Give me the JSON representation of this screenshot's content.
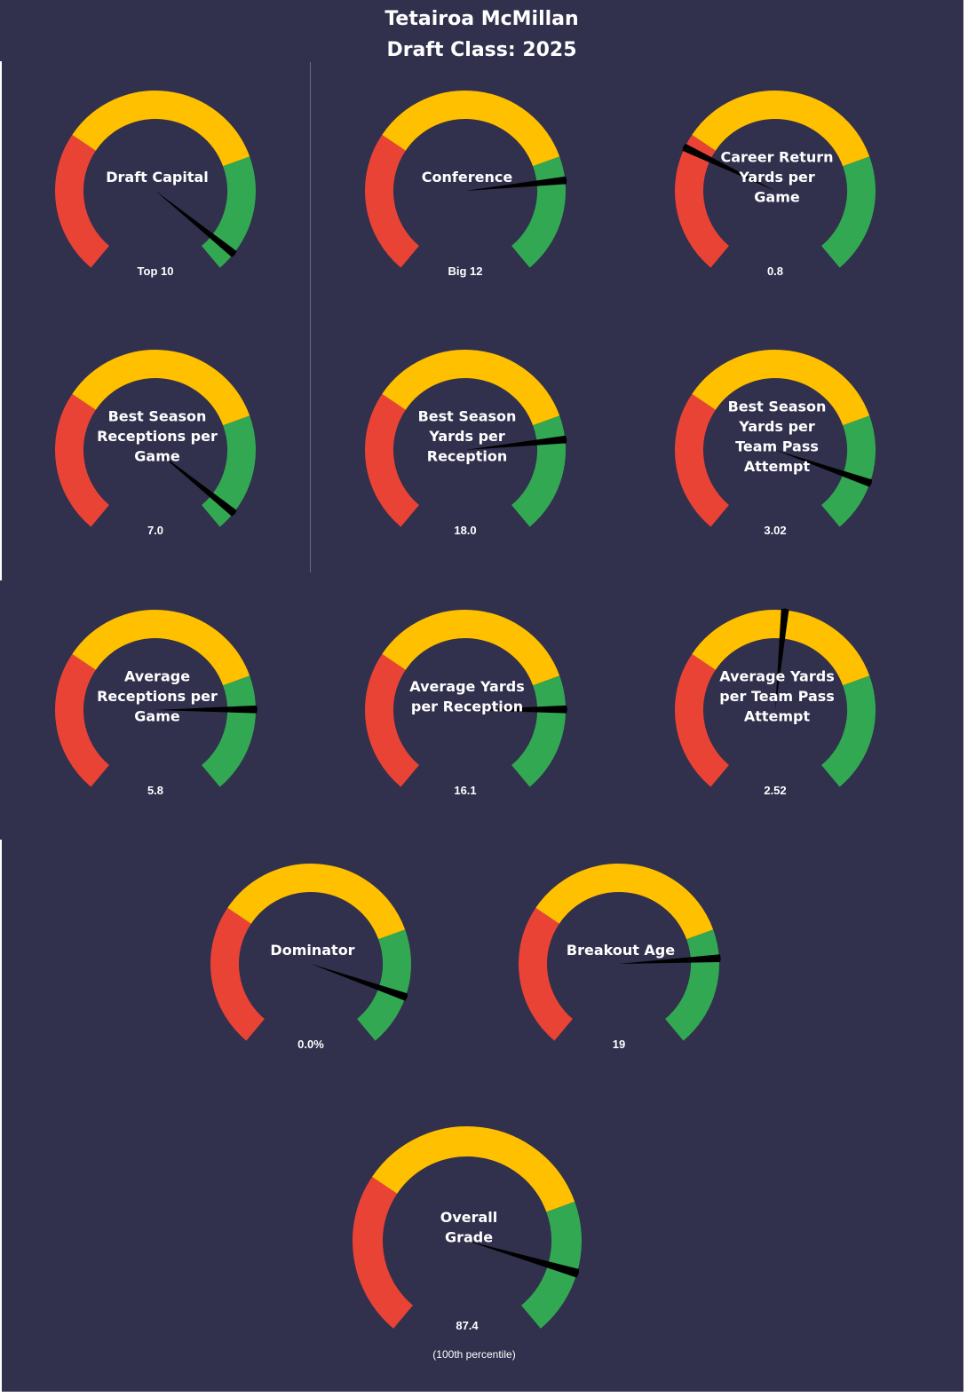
{
  "header": {
    "player_name": "Tetairoa McMillan",
    "draft_class": "Draft Class: 2025"
  },
  "colors": {
    "background": "#31304d",
    "low": "#e94335",
    "mid": "#ffc000",
    "high": "#33a852",
    "needle": "#000000",
    "text": "#ffffff",
    "divider": "#6b6a85"
  },
  "chart_data": {
    "type": "gauge",
    "scale": "percentile",
    "range": [
      0,
      100
    ],
    "bands": [
      {
        "color": "red",
        "from": 0,
        "to": 30
      },
      {
        "color": "yellow",
        "from": 30,
        "to": 75
      },
      {
        "color": "green",
        "from": 75,
        "to": 100
      }
    ],
    "gauges": [
      {
        "id": "draft-capital",
        "label_lines": [
          "Draft Capital"
        ],
        "value_label": "Top 10",
        "needle_percentile": 96
      },
      {
        "id": "conference",
        "label_lines": [
          "Conference"
        ],
        "value_label": "Big 12",
        "needle_percentile": 80
      },
      {
        "id": "career-return-yards-per-game",
        "label_lines": [
          "Career Return",
          "Yards per",
          "Game"
        ],
        "value_label": "0.8",
        "needle_percentile": 27
      },
      {
        "id": "best-season-receptions-per-game",
        "label_lines": [
          "Best Season",
          "Receptions per",
          "Game"
        ],
        "value_label": "7.0",
        "needle_percentile": 96
      },
      {
        "id": "best-season-yards-per-reception",
        "label_lines": [
          "Best Season",
          "Yards per",
          "Reception"
        ],
        "value_label": "18.0",
        "needle_percentile": 80
      },
      {
        "id": "best-season-yards-per-team-pass-attempt",
        "label_lines": [
          "Best Season",
          "Yards per",
          "Team Pass",
          "Attempt"
        ],
        "value_label": "3.02",
        "needle_percentile": 89
      },
      {
        "id": "average-receptions-per-game",
        "label_lines": [
          "Average",
          "Receptions per",
          "Game"
        ],
        "value_label": "5.8",
        "needle_percentile": 82
      },
      {
        "id": "average-yards-per-reception",
        "label_lines": [
          "Average Yards",
          "per Reception"
        ],
        "value_label": "16.1",
        "needle_percentile": 82
      },
      {
        "id": "average-yards-per-team-pass-attempt",
        "label_lines": [
          "Average Yards",
          "per Team Pass",
          "Attempt"
        ],
        "value_label": "2.52",
        "needle_percentile": 52
      },
      {
        "id": "dominator",
        "label_lines": [
          "Dominator"
        ],
        "value_label": "0.0%",
        "needle_percentile": 89
      },
      {
        "id": "breakout-age",
        "label_lines": [
          "Breakout Age"
        ],
        "value_label": "19",
        "needle_percentile": 81
      },
      {
        "id": "overall-grade",
        "label_lines": [
          "Overall",
          "Grade"
        ],
        "value_label": "87.4",
        "percentile_label": "(100th  percentile)",
        "needle_percentile": 88
      }
    ]
  }
}
